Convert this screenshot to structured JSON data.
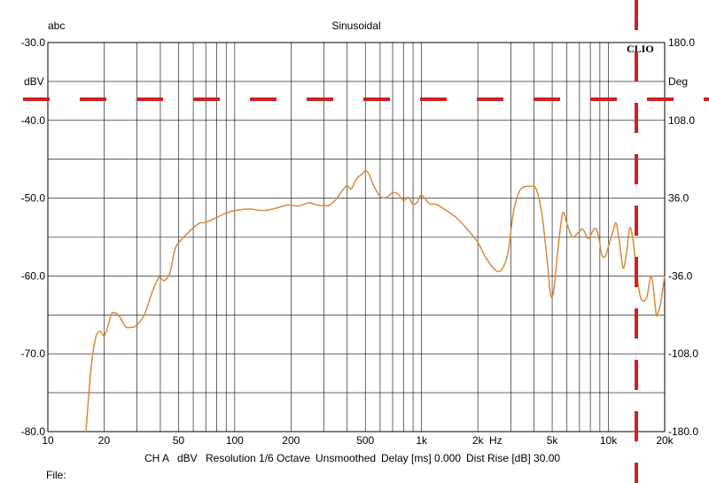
{
  "chart_data": {
    "type": "line",
    "title": "Sinusoidal",
    "corner_label": "abc",
    "brand": "CLIO",
    "left_unit": "dBV",
    "right_unit": "Deg",
    "x_scale": "log",
    "xlim": [
      10,
      20000
    ],
    "ylim": [
      -80,
      -30
    ],
    "y2lim": [
      -180,
      180
    ],
    "grid": true,
    "x_ticks": [
      {
        "value": 10,
        "label": "10"
      },
      {
        "value": 20,
        "label": "20"
      },
      {
        "value": 50,
        "label": "50"
      },
      {
        "value": 100,
        "label": "100"
      },
      {
        "value": 200,
        "label": "200"
      },
      {
        "value": 500,
        "label": "500"
      },
      {
        "value": 1000,
        "label": "1k"
      },
      {
        "value": 2000,
        "label": "2k"
      },
      {
        "value": 5000,
        "label": "5k"
      },
      {
        "value": 10000,
        "label": "10k"
      },
      {
        "value": 20000,
        "label": "20k"
      }
    ],
    "x_unit_label": "Hz",
    "y_ticks": [
      "-30.0",
      "-40.0",
      "-50.0",
      "-60.0",
      "-70.0",
      "-80.0"
    ],
    "y_tick_values": [
      -30,
      -40,
      -50,
      -60,
      -70,
      -80
    ],
    "y2_ticks": [
      "180.0",
      "108.0",
      "36.0",
      "-36.0",
      "-108.0",
      "-180.0"
    ],
    "y2_tick_values": [
      180,
      108,
      36,
      -36,
      -108,
      -180
    ],
    "series": [
      {
        "color": "#d98a3d",
        "x": [
          16,
          17,
          18,
          19,
          20,
          21,
          22,
          24,
          26,
          28,
          30,
          33,
          36,
          39,
          40,
          42,
          45,
          48,
          52,
          56,
          60,
          65,
          70,
          80,
          90,
          100,
          120,
          140,
          160,
          190,
          220,
          250,
          280,
          320,
          350,
          380,
          400,
          420,
          450,
          480,
          500,
          520,
          550,
          600,
          650,
          700,
          750,
          800,
          850,
          900,
          950,
          1000,
          1100,
          1200,
          1300,
          1500,
          1700,
          2000,
          2200,
          2500,
          2700,
          2900,
          3100,
          3300,
          3500,
          3800,
          4100,
          4400,
          4700,
          4900,
          5100,
          5400,
          5700,
          6000,
          6400,
          6800,
          7300,
          7800,
          8400,
          8800,
          9200,
          9600,
          10000,
          10500,
          11000,
          11500,
          12000,
          12500,
          13000,
          13600,
          14300,
          15000,
          16000,
          17000,
          18000,
          18500,
          19000,
          20000
        ],
        "y": [
          -80,
          -72,
          -68,
          -67.1,
          -67.7,
          -66.4,
          -64.8,
          -65.1,
          -66.5,
          -66.6,
          -66.3,
          -64.9,
          -62.2,
          -60.3,
          -60.2,
          -60.6,
          -59.6,
          -56.5,
          -55.3,
          -54.5,
          -53.8,
          -53.2,
          -53.1,
          -52.5,
          -51.9,
          -51.6,
          -51.4,
          -51.6,
          -51.4,
          -50.9,
          -51.0,
          -50.6,
          -50.9,
          -50.9,
          -50.1,
          -48.9,
          -48.4,
          -48.8,
          -47.5,
          -46.9,
          -46.5,
          -46.8,
          -48.2,
          -49.8,
          -49.9,
          -49.3,
          -49.5,
          -50.3,
          -49.9,
          -50.8,
          -50.5,
          -49.6,
          -50.7,
          -50.8,
          -51.3,
          -52.3,
          -53.6,
          -55.7,
          -57.6,
          -59.3,
          -59.1,
          -57.0,
          -51.8,
          -49.4,
          -48.6,
          -48.5,
          -48.8,
          -52.0,
          -58.0,
          -62.4,
          -61.8,
          -56.0,
          -51.9,
          -53.3,
          -55.0,
          -54.6,
          -54.0,
          -55.2,
          -53.9,
          -54.6,
          -57.2,
          -57.5,
          -56.2,
          -54.5,
          -53.2,
          -56.0,
          -59.0,
          -57.0,
          -53.8,
          -55.7,
          -60.5,
          -63.0,
          -62.8,
          -60.0,
          -64.9,
          -64.5,
          -63.6,
          -60.0
        ]
      }
    ]
  },
  "footer": {
    "channel": "CH A",
    "unit": "dBV",
    "resolution": "Resolution 1/6 Octave",
    "smoothing": "Unsmoothed",
    "delay": "Delay [ms] 0.000",
    "dist_rise": "Dist Rise [dB] 30.00",
    "file_label": "File:"
  },
  "overlay": {
    "color": "#cc2222"
  }
}
